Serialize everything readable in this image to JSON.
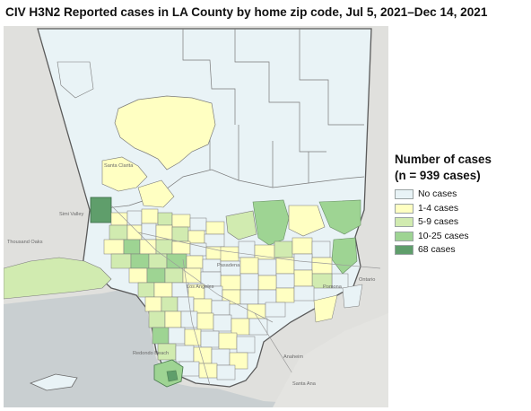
{
  "title": "CIV H3N2 Reported cases in LA County by home zip code, Jul 5, 2021–Dec 14, 2021",
  "legend": {
    "title_line1": "Number of cases",
    "title_line2": "(n = 939 cases)",
    "items": [
      {
        "label": "No cases",
        "color": "#e8f3f6"
      },
      {
        "label": "1-4 cases",
        "color": "#ffffc2"
      },
      {
        "label": "5-9 cases",
        "color": "#d1ebb0"
      },
      {
        "label": "10-25 cases",
        "color": "#9ed493"
      },
      {
        "label": "68 cases",
        "color": "#5f9e6b"
      }
    ]
  },
  "map": {
    "place_labels": {
      "santa_clarita": "Santa Clarita",
      "simi_valley": "Simi Valley",
      "thousand_oaks": "Thousand Oaks",
      "los_angeles": "Los Angeles",
      "pasadena": "Pasadena",
      "pomona": "Pomona",
      "ontario": "Ontario",
      "redondo_beach": "Redondo Beach",
      "anaheim": "Anaheim",
      "santa_ana": "Santa Ana"
    }
  }
}
